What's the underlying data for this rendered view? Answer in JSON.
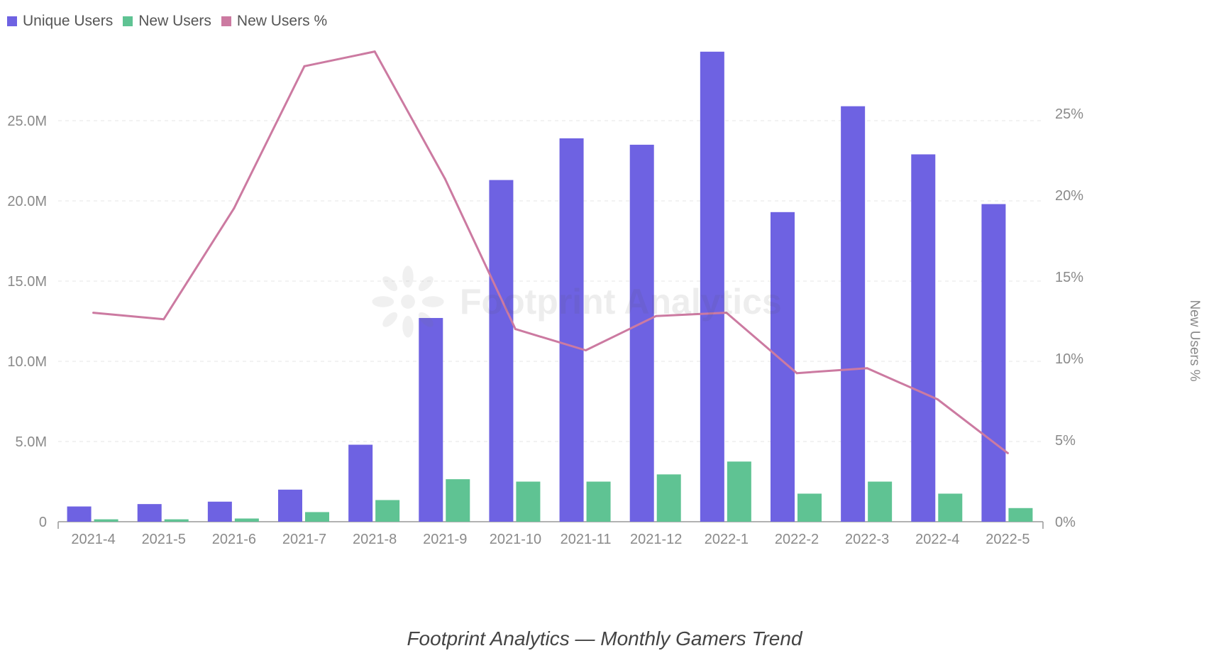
{
  "legend": [
    {
      "label": "Unique Users",
      "color": "#6e62e2"
    },
    {
      "label": "New Users",
      "color": "#5fc393"
    },
    {
      "label": "New Users %",
      "color": "#cc7aa1"
    }
  ],
  "watermark": {
    "text": "Footprint Analytics",
    "icon": "footprint-logo-icon"
  },
  "caption": "Footprint Analytics — Monthly Gamers Trend",
  "chart_data": {
    "type": "bar",
    "categories": [
      "2021-4",
      "2021-5",
      "2021-6",
      "2021-7",
      "2021-8",
      "2021-9",
      "2021-10",
      "2021-11",
      "2021-12",
      "2022-1",
      "2022-2",
      "2022-3",
      "2022-4",
      "2022-5"
    ],
    "series": [
      {
        "name": "Unique Users",
        "type": "bar",
        "axis": "left",
        "color": "#6e62e2",
        "values": [
          0.95,
          1.1,
          1.25,
          2.0,
          4.8,
          12.7,
          21.3,
          23.9,
          23.5,
          29.3,
          19.3,
          25.9,
          22.9,
          19.8
        ]
      },
      {
        "name": "New Users",
        "type": "bar",
        "axis": "left",
        "color": "#5fc393",
        "values": [
          0.15,
          0.15,
          0.2,
          0.6,
          1.35,
          2.65,
          2.5,
          2.5,
          2.95,
          3.75,
          1.75,
          2.5,
          1.75,
          0.85
        ]
      },
      {
        "name": "New Users %",
        "type": "line",
        "axis": "right",
        "color": "#cc7aa1",
        "values": [
          12.8,
          12.4,
          19.2,
          27.9,
          28.8,
          21.0,
          11.8,
          10.5,
          12.6,
          12.8,
          9.1,
          9.4,
          7.5,
          4.2
        ]
      }
    ],
    "y_left": {
      "ticks": [
        "0",
        "5.0M",
        "10.0M",
        "15.0M",
        "20.0M",
        "25.0M"
      ],
      "tick_values": [
        0,
        5,
        10,
        15,
        20,
        25
      ],
      "ylim": [
        0,
        31
      ],
      "unit": "M"
    },
    "y_right": {
      "label": "New Users %",
      "ticks": [
        "0%",
        "5%",
        "10%",
        "15%",
        "20%",
        "25%"
      ],
      "tick_values": [
        0,
        5,
        10,
        15,
        20,
        25
      ],
      "ylim": [
        0,
        31
      ]
    },
    "grid": true,
    "legend_position": "top-left"
  }
}
